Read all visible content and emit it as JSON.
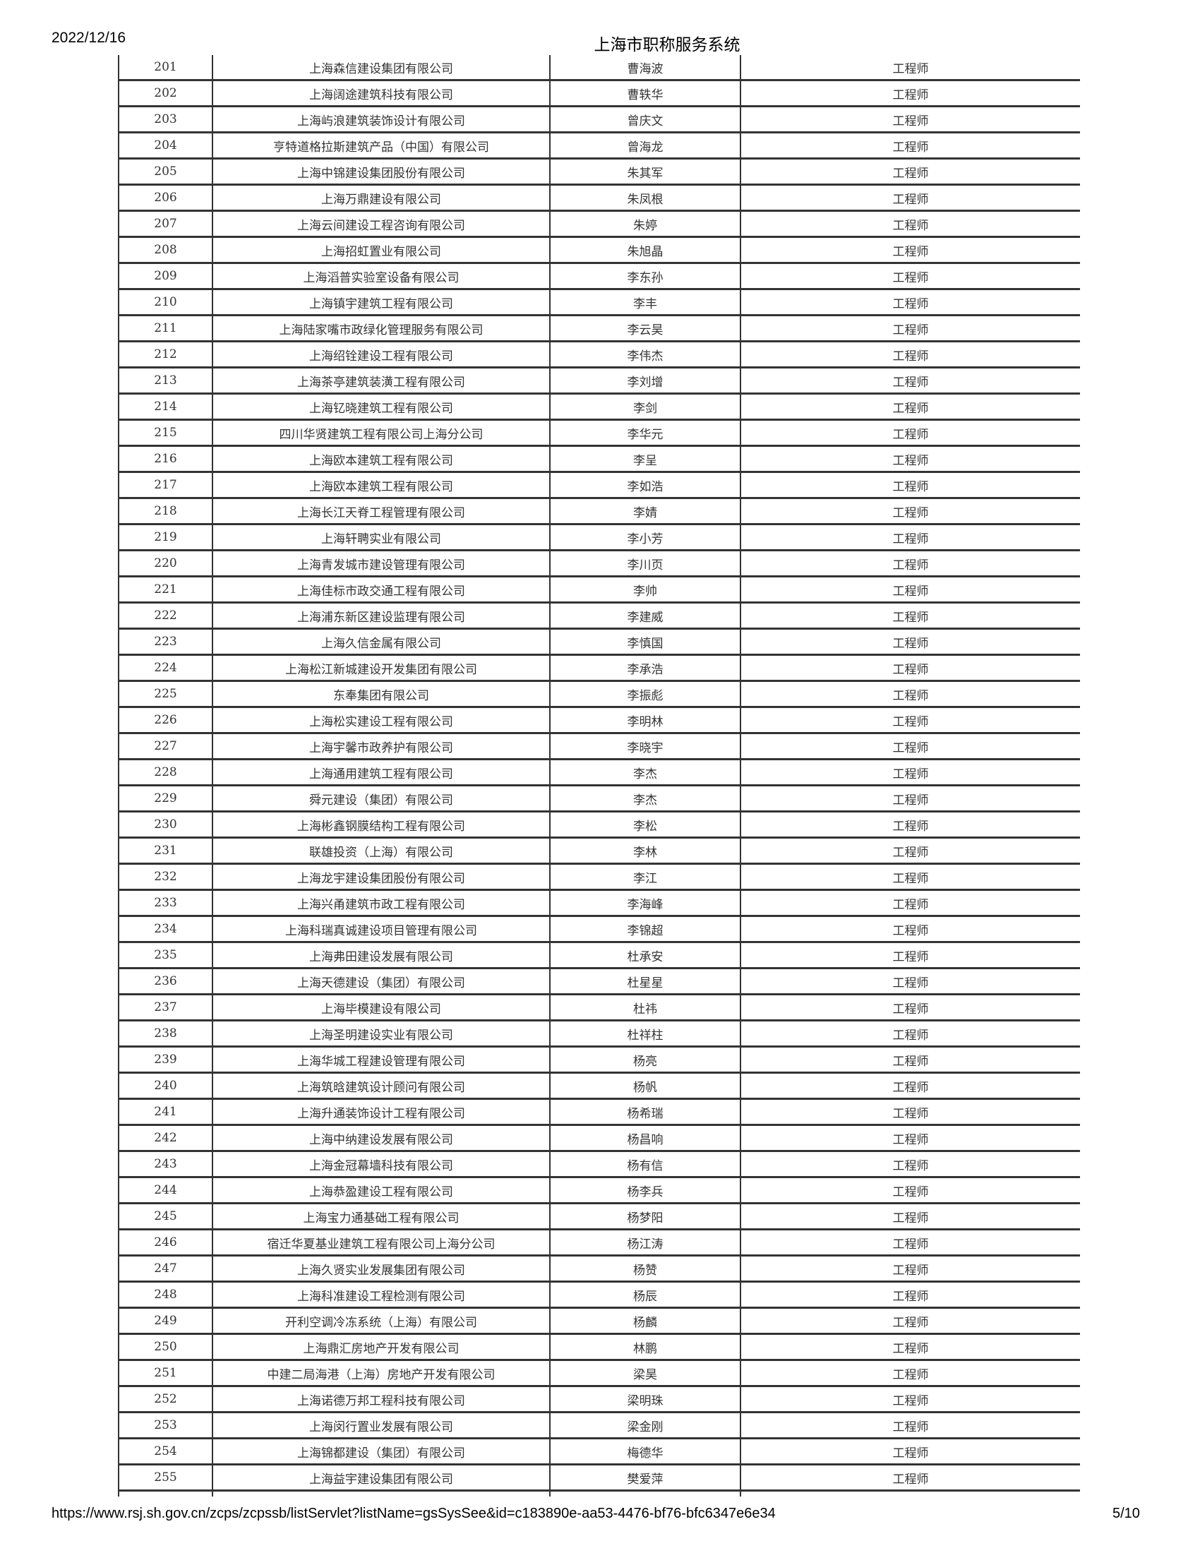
{
  "header": {
    "date": "2022/12/16",
    "title": "上海市职称服务系统"
  },
  "footer": {
    "url": "https://www.rsj.sh.gov.cn/zcps/zcpssb/listServlet?listName=gsSysSee&id=c183890e-aa53-4476-bf76-bfc6347e6e34",
    "page": "5/10"
  },
  "rows": [
    [
      "201",
      "上海森信建设集团有限公司",
      "曹海波",
      "工程师"
    ],
    [
      "202",
      "上海阔途建筑科技有限公司",
      "曹轶华",
      "工程师"
    ],
    [
      "203",
      "上海屿浪建筑装饰设计有限公司",
      "曾庆文",
      "工程师"
    ],
    [
      "204",
      "亨特道格拉斯建筑产品（中国）有限公司",
      "曾海龙",
      "工程师"
    ],
    [
      "205",
      "上海中锦建设集团股份有限公司",
      "朱其军",
      "工程师"
    ],
    [
      "206",
      "上海万鼎建设有限公司",
      "朱凤根",
      "工程师"
    ],
    [
      "207",
      "上海云间建设工程咨询有限公司",
      "朱婷",
      "工程师"
    ],
    [
      "208",
      "上海招虹置业有限公司",
      "朱旭晶",
      "工程师"
    ],
    [
      "209",
      "上海滔普实验室设备有限公司",
      "李东孙",
      "工程师"
    ],
    [
      "210",
      "上海镇宇建筑工程有限公司",
      "李丰",
      "工程师"
    ],
    [
      "211",
      "上海陆家嘴市政绿化管理服务有限公司",
      "李云昊",
      "工程师"
    ],
    [
      "212",
      "上海绍铨建设工程有限公司",
      "李伟杰",
      "工程师"
    ],
    [
      "213",
      "上海茶亭建筑装潢工程有限公司",
      "李刘增",
      "工程师"
    ],
    [
      "214",
      "上海钇晓建筑工程有限公司",
      "李剑",
      "工程师"
    ],
    [
      "215",
      "四川华贤建筑工程有限公司上海分公司",
      "李华元",
      "工程师"
    ],
    [
      "216",
      "上海欧本建筑工程有限公司",
      "李呈",
      "工程师"
    ],
    [
      "217",
      "上海欧本建筑工程有限公司",
      "李如浩",
      "工程师"
    ],
    [
      "218",
      "上海长江天脊工程管理有限公司",
      "李婧",
      "工程师"
    ],
    [
      "219",
      "上海轩聘实业有限公司",
      "李小芳",
      "工程师"
    ],
    [
      "220",
      "上海青发城市建设管理有限公司",
      "李川页",
      "工程师"
    ],
    [
      "221",
      "上海佳标市政交通工程有限公司",
      "李帅",
      "工程师"
    ],
    [
      "222",
      "上海浦东新区建设监理有限公司",
      "李建威",
      "工程师"
    ],
    [
      "223",
      "上海久信金属有限公司",
      "李慎国",
      "工程师"
    ],
    [
      "224",
      "上海松江新城建设开发集团有限公司",
      "李承浩",
      "工程师"
    ],
    [
      "225",
      "东奉集团有限公司",
      "李振彪",
      "工程师"
    ],
    [
      "226",
      "上海松实建设工程有限公司",
      "李明林",
      "工程师"
    ],
    [
      "227",
      "上海宇馨市政养护有限公司",
      "李晓宇",
      "工程师"
    ],
    [
      "228",
      "上海通用建筑工程有限公司",
      "李杰",
      "工程师"
    ],
    [
      "229",
      "舜元建设（集团）有限公司",
      "李杰",
      "工程师"
    ],
    [
      "230",
      "上海彬鑫钢膜结构工程有限公司",
      "李松",
      "工程师"
    ],
    [
      "231",
      "联雄投资（上海）有限公司",
      "李林",
      "工程师"
    ],
    [
      "232",
      "上海龙宇建设集团股份有限公司",
      "李江",
      "工程师"
    ],
    [
      "233",
      "上海兴甬建筑市政工程有限公司",
      "李海峰",
      "工程师"
    ],
    [
      "234",
      "上海科瑞真诚建设项目管理有限公司",
      "李锦超",
      "工程师"
    ],
    [
      "235",
      "上海弗田建设发展有限公司",
      "杜承安",
      "工程师"
    ],
    [
      "236",
      "上海天德建设（集团）有限公司",
      "杜星星",
      "工程师"
    ],
    [
      "237",
      "上海毕模建设有限公司",
      "杜祎",
      "工程师"
    ],
    [
      "238",
      "上海圣明建设实业有限公司",
      "杜祥柱",
      "工程师"
    ],
    [
      "239",
      "上海华城工程建设管理有限公司",
      "杨亮",
      "工程师"
    ],
    [
      "240",
      "上海筑晗建筑设计顾问有限公司",
      "杨帆",
      "工程师"
    ],
    [
      "241",
      "上海升通装饰设计工程有限公司",
      "杨希瑞",
      "工程师"
    ],
    [
      "242",
      "上海中纳建设发展有限公司",
      "杨昌响",
      "工程师"
    ],
    [
      "243",
      "上海金冠幕墙科技有限公司",
      "杨有信",
      "工程师"
    ],
    [
      "244",
      "上海恭盈建设工程有限公司",
      "杨李兵",
      "工程师"
    ],
    [
      "245",
      "上海宝力通基础工程有限公司",
      "杨梦阳",
      "工程师"
    ],
    [
      "246",
      "宿迁华夏基业建筑工程有限公司上海分公司",
      "杨江涛",
      "工程师"
    ],
    [
      "247",
      "上海久贤实业发展集团有限公司",
      "杨赞",
      "工程师"
    ],
    [
      "248",
      "上海科准建设工程检测有限公司",
      "杨辰",
      "工程师"
    ],
    [
      "249",
      "开利空调冷冻系统（上海）有限公司",
      "杨麟",
      "工程师"
    ],
    [
      "250",
      "上海鼎汇房地产开发有限公司",
      "林鹏",
      "工程师"
    ],
    [
      "251",
      "中建二局海港（上海）房地产开发有限公司",
      "梁昊",
      "工程师"
    ],
    [
      "252",
      "上海诺德万邦工程科技有限公司",
      "梁明珠",
      "工程师"
    ],
    [
      "253",
      "上海闵行置业发展有限公司",
      "梁金刚",
      "工程师"
    ],
    [
      "254",
      "上海锦都建设（集团）有限公司",
      "梅德华",
      "工程师"
    ],
    [
      "255",
      "上海益宇建设集团有限公司",
      "樊爱萍",
      "工程师"
    ]
  ]
}
